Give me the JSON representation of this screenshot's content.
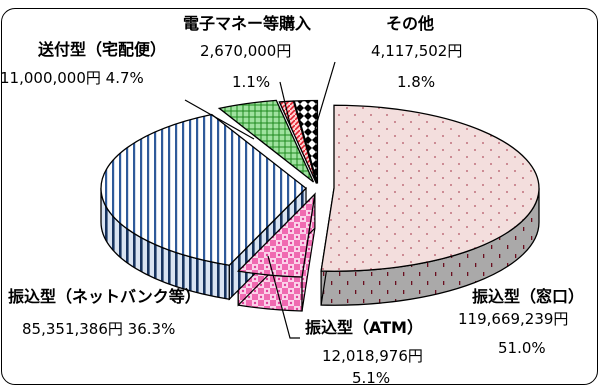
{
  "chart_data": {
    "type": "pie",
    "title": "",
    "slices": [
      {
        "category": "振込型（窓口）",
        "amount": "119,669,239円",
        "percent_label": "51.0%",
        "percent": 51.0,
        "pattern": "dots"
      },
      {
        "category": "振込型（ATM）",
        "amount": "12,018,976円",
        "percent_label": "5.1%",
        "percent": 5.1,
        "pattern": "checker"
      },
      {
        "category": "振込型（ネットバンク等）",
        "amount": "85,351,386円",
        "percent_label": "36.3%",
        "percent": 36.3,
        "pattern": "vertical-stripes"
      },
      {
        "category": "送付型（宅配便）",
        "amount": "11,000,000円",
        "percent_label": "4.7%",
        "percent": 4.7,
        "pattern": "grid"
      },
      {
        "category": "電子マネー等購入",
        "amount": "2,670,000円",
        "percent_label": "1.1%",
        "percent": 1.1,
        "pattern": "diagonal"
      },
      {
        "category": "その他",
        "amount": "4,117,502円",
        "percent_label": "1.8%",
        "percent": 1.8,
        "pattern": "diamonds"
      }
    ],
    "colors": {
      "madoguchi": "#f3dedd",
      "atm": "#f06ab1",
      "netbank": "#c8d8ec",
      "takuhai": "#40c040",
      "emoney": "#f06070",
      "other": "#000000"
    },
    "exploded": true
  }
}
